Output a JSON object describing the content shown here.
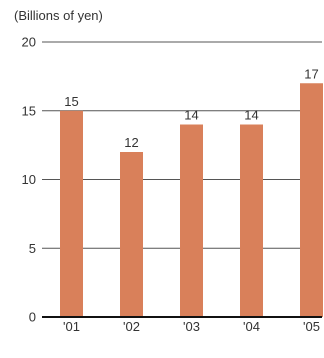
{
  "colors": {
    "bar": "#d9805a",
    "grid": "#555555",
    "axis": "#111111",
    "text": "#333333"
  },
  "chart_data": {
    "type": "bar",
    "unit_label": "(Billions of yen)",
    "categories": [
      "'01",
      "'02",
      "'03",
      "'04",
      "'05"
    ],
    "values": [
      15,
      12,
      14,
      14,
      17
    ],
    "data_labels": [
      "15",
      "12",
      "14",
      "14",
      "17"
    ],
    "ylim": [
      0,
      20
    ],
    "yticks": [
      0,
      5,
      10,
      15,
      20
    ],
    "ytick_labels": [
      "0",
      "5",
      "10",
      "15",
      "20"
    ],
    "grid": true,
    "legend": "none"
  }
}
